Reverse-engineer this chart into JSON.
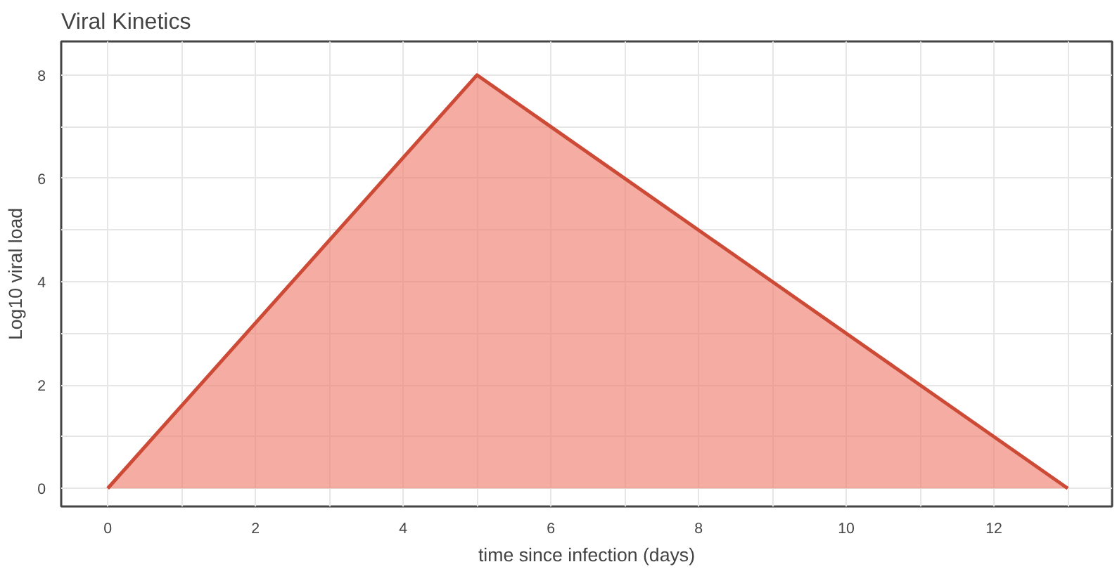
{
  "chart_data": {
    "type": "area",
    "title": "Viral Kinetics",
    "xlabel": "time since infection (days)",
    "ylabel": "Log10 viral load",
    "x": [
      0,
      5,
      13
    ],
    "series": [
      {
        "color": "#cc4a36",
        "values": [
          0,
          8,
          0
        ]
      }
    ],
    "xlim": [
      -0.63,
      13.6
    ],
    "ylim": [
      -0.35,
      8.65
    ],
    "xticks": [
      0,
      {
        "value": 1,
        "label": null
      },
      2,
      {
        "value": 3,
        "label": null
      },
      4,
      {
        "value": 5,
        "label": null
      },
      6,
      {
        "value": 7,
        "label": null
      },
      8,
      {
        "value": 9,
        "label": null
      },
      10,
      {
        "value": 11,
        "label": null
      },
      12,
      {
        "value": 13,
        "label": null
      }
    ],
    "yticks": [
      0,
      {
        "value": 1,
        "label": null
      },
      2,
      {
        "value": 3,
        "label": null
      },
      4,
      {
        "value": 5,
        "label": null
      },
      6,
      {
        "value": 7,
        "label": null
      },
      8
    ],
    "grid": true
  }
}
